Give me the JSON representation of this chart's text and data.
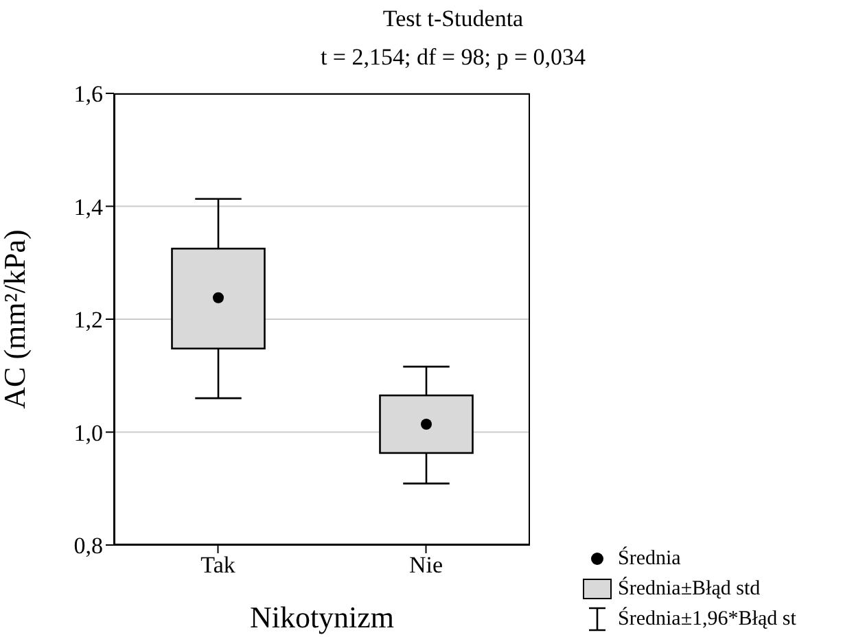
{
  "chart_data": {
    "type": "box",
    "title": "Test t-Studenta",
    "subtitle": "t = 2,154;  df = 98;  p = 0,034",
    "xlabel": "Nikotynizm",
    "ylabel": "AC (mm²/kPa)",
    "categories": [
      "Tak",
      "Nie"
    ],
    "color": "#d9d9d9",
    "boxes": [
      {
        "low": 1.06,
        "q1": 1.148,
        "median": 1.238,
        "q3": 1.325,
        "high": 1.413
      },
      {
        "low": 0.909,
        "q1": 0.963,
        "median": 1.014,
        "q3": 1.065,
        "high": 1.116
      }
    ],
    "ylim": [
      0.8,
      1.6
    ],
    "yticks": [
      {
        "value": 0.8,
        "label": "0,8"
      },
      {
        "value": 1.0,
        "label": "1,0"
      },
      {
        "value": 1.2,
        "label": "1,2"
      },
      {
        "value": 1.4,
        "label": "1,4"
      },
      {
        "value": 1.6,
        "label": "1,6"
      }
    ],
    "grid": "y",
    "annotations": [
      "Średnia",
      "Średnia±Błąd std",
      "Średnia±1,96*Błąd st"
    ]
  }
}
